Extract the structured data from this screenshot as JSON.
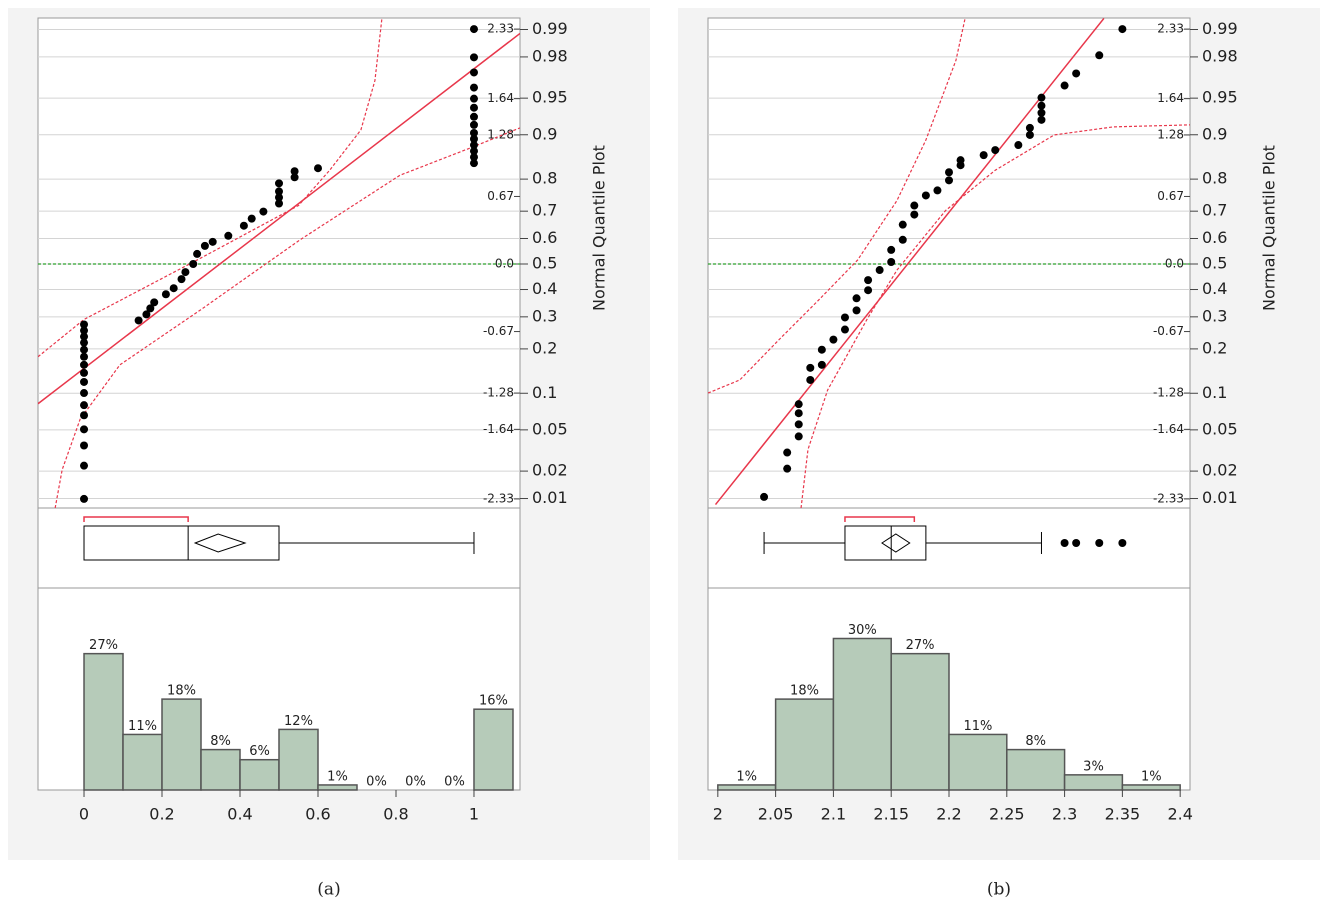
{
  "chart_data": [
    {
      "type": "distribution",
      "caption": "(a)",
      "xlim": [
        -0.118,
        1.118
      ],
      "xticks": [
        0,
        0.2,
        0.4,
        0.6,
        0.8,
        1
      ],
      "quantile": {
        "ylabel": "Normal Quantile Plot",
        "ylim": [
          -2.42,
          2.44
        ],
        "points": {
          "x": [
            0,
            0,
            0,
            0,
            0,
            0,
            0,
            0,
            0,
            0,
            0,
            0,
            0,
            0,
            0,
            0,
            0.14,
            0.16,
            0.17,
            0.18,
            0.21,
            0.23,
            0.25,
            0.26,
            0.28,
            0.29,
            0.31,
            0.33,
            0.37,
            0.41,
            0.43,
            0.46,
            0.5,
            0.5,
            0.5,
            0.5,
            0.54,
            0.54,
            0.6,
            1,
            1,
            1,
            1,
            1,
            1,
            1,
            1,
            1,
            1,
            1,
            1,
            1,
            1
          ],
          "y": [
            -2.33,
            -2.0,
            -1.8,
            -1.64,
            -1.5,
            -1.4,
            -1.28,
            -1.17,
            -1.08,
            -1.0,
            -0.92,
            -0.85,
            -0.78,
            -0.72,
            -0.66,
            -0.6,
            -0.56,
            -0.5,
            -0.44,
            -0.38,
            -0.3,
            -0.24,
            -0.15,
            -0.08,
            0.0,
            0.1,
            0.18,
            0.22,
            0.28,
            0.38,
            0.45,
            0.52,
            0.6,
            0.66,
            0.72,
            0.8,
            0.86,
            0.92,
            0.95,
            1.0,
            1.06,
            1.12,
            1.18,
            1.24,
            1.3,
            1.38,
            1.46,
            1.55,
            1.64,
            1.75,
            1.9,
            2.05,
            2.33
          ]
        },
        "fit_line": {
          "x": [
            -0.118,
            1.118
          ],
          "y": [
            -1.386,
            2.287
          ]
        },
        "band_upper": {
          "x": [
            -0.118,
            0,
            0.3,
            0.55,
            0.63,
            0.71,
            0.746,
            0.764
          ],
          "y": [
            -0.92,
            -0.55,
            0.06,
            0.58,
            0.93,
            1.33,
            1.82,
            2.44
          ]
        },
        "band_lower": {
          "x": [
            -0.074,
            -0.056,
            -0.01,
            0.092,
            0.297,
            0.554,
            0.81,
            0.99,
            1.118
          ],
          "y": [
            -2.42,
            -2.04,
            -1.54,
            -1.0,
            -0.46,
            0.24,
            0.88,
            1.15,
            1.35
          ]
        },
        "ref_line": 0,
        "yticks": [
          2.33,
          1.64,
          1.28,
          0.67,
          {
            "value": 0,
            "label": "0.0"
          },
          -0.67,
          -1.28,
          -1.64,
          -2.33
        ],
        "prob_ticks": [
          {
            "value": 2.326,
            "label": "0.99"
          },
          {
            "value": 2.054,
            "label": "0.98"
          },
          {
            "value": 1.645,
            "label": "0.95"
          },
          {
            "value": 1.282,
            "label": "0.9"
          },
          {
            "value": 0.842,
            "label": "0.8"
          },
          {
            "value": 0.524,
            "label": "0.7"
          },
          {
            "value": 0.253,
            "label": "0.6"
          },
          {
            "value": 0,
            "label": "0.5"
          },
          {
            "value": -0.253,
            "label": "0.4"
          },
          {
            "value": -0.524,
            "label": "0.3"
          },
          {
            "value": -0.842,
            "label": "0.2"
          },
          {
            "value": -1.282,
            "label": "0.1"
          },
          {
            "value": -1.645,
            "label": "0.05"
          },
          {
            "value": -2.054,
            "label": "0.02"
          },
          {
            "value": -2.326,
            "label": "0.01"
          }
        ]
      },
      "box": {
        "min": 0,
        "q1": 0,
        "median": 0.267,
        "q3": 0.5,
        "max": 1,
        "mean": 0.344,
        "mean_ci": [
          0.285,
          0.413
        ],
        "shortest_half": [
          0,
          0.267
        ],
        "outliers": []
      },
      "histogram": {
        "bins": [
          0,
          0.1,
          0.2,
          0.3,
          0.4,
          0.5,
          0.6,
          0.7,
          0.8,
          0.9,
          1.0,
          1.1
        ],
        "values": [
          27,
          11,
          18,
          8,
          6,
          12,
          1,
          0,
          0,
          0,
          16
        ],
        "value_labels": [
          "27%",
          "11%",
          "18%",
          "8%",
          "6%",
          "12%",
          "1%",
          "0%",
          "0%",
          "0%",
          "16%"
        ],
        "ylim": [
          0,
          40
        ],
        "color": "#b6cbb9"
      }
    },
    {
      "type": "distribution",
      "caption": "(b)",
      "xlim": [
        1.9915,
        2.4085
      ],
      "xticks": [
        2,
        2.05,
        2.1,
        2.15,
        2.2,
        2.25,
        2.3,
        2.35,
        2.4
      ],
      "quantile": {
        "ylabel": "Normal Quantile Plot",
        "ylim": [
          -2.42,
          2.44
        ],
        "points": {
          "x": [
            2.04,
            2.06,
            2.06,
            2.07,
            2.07,
            2.07,
            2.07,
            2.08,
            2.08,
            2.09,
            2.09,
            2.1,
            2.11,
            2.11,
            2.12,
            2.12,
            2.13,
            2.13,
            2.14,
            2.15,
            2.15,
            2.16,
            2.16,
            2.17,
            2.17,
            2.18,
            2.19,
            2.2,
            2.2,
            2.21,
            2.21,
            2.23,
            2.24,
            2.26,
            2.27,
            2.27,
            2.28,
            2.28,
            2.28,
            2.28,
            2.3,
            2.31,
            2.33,
            2.35
          ],
          "y": [
            -2.31,
            -2.03,
            -1.87,
            -1.71,
            -1.59,
            -1.48,
            -1.39,
            -1.15,
            -1.03,
            -1.0,
            -0.85,
            -0.75,
            -0.65,
            -0.53,
            -0.46,
            -0.34,
            -0.26,
            -0.16,
            -0.06,
            0.02,
            0.14,
            0.24,
            0.39,
            0.49,
            0.58,
            0.68,
            0.73,
            0.83,
            0.91,
            0.98,
            1.03,
            1.08,
            1.13,
            1.18,
            1.28,
            1.35,
            1.43,
            1.5,
            1.57,
            1.65,
            1.77,
            1.89,
            2.07,
            2.33
          ]
        },
        "fit_line": {
          "x": [
            1.998,
            2.334
          ],
          "y": [
            -2.386,
            2.436
          ]
        },
        "band_upper": {
          "x": [
            1.9915,
            2.019,
            2.053,
            2.087,
            2.121,
            2.155,
            2.18,
            2.206,
            2.214
          ],
          "y": [
            -1.28,
            -1.15,
            -0.75,
            -0.36,
            0.04,
            0.63,
            1.23,
            2.02,
            2.44
          ]
        },
        "band_lower": {
          "x": [
            2.072,
            2.078,
            2.095,
            2.129,
            2.155,
            2.197,
            2.24,
            2.291,
            2.342,
            2.4085
          ],
          "y": [
            -2.42,
            -1.84,
            -1.25,
            -0.55,
            -0.06,
            0.53,
            0.93,
            1.28,
            1.36,
            1.38
          ]
        },
        "ref_line": 0,
        "yticks": [
          2.33,
          1.64,
          1.28,
          0.67,
          {
            "value": 0,
            "label": "0.0"
          },
          -0.67,
          -1.28,
          -1.64,
          -2.33
        ],
        "prob_ticks": [
          {
            "value": 2.326,
            "label": "0.99"
          },
          {
            "value": 2.054,
            "label": "0.98"
          },
          {
            "value": 1.645,
            "label": "0.95"
          },
          {
            "value": 1.282,
            "label": "0.9"
          },
          {
            "value": 0.842,
            "label": "0.8"
          },
          {
            "value": 0.524,
            "label": "0.7"
          },
          {
            "value": 0.253,
            "label": "0.6"
          },
          {
            "value": 0,
            "label": "0.5"
          },
          {
            "value": -0.253,
            "label": "0.4"
          },
          {
            "value": -0.524,
            "label": "0.3"
          },
          {
            "value": -0.842,
            "label": "0.2"
          },
          {
            "value": -1.282,
            "label": "0.1"
          },
          {
            "value": -1.645,
            "label": "0.05"
          },
          {
            "value": -2.054,
            "label": "0.02"
          },
          {
            "value": -2.326,
            "label": "0.01"
          }
        ]
      },
      "box": {
        "min": 2.04,
        "q1": 2.11,
        "median": 2.15,
        "q3": 2.18,
        "max": 2.28,
        "mean": 2.154,
        "mean_ci": [
          2.142,
          2.166
        ],
        "shortest_half": [
          2.11,
          2.17
        ],
        "outliers": [
          2.3,
          2.31,
          2.33,
          2.35
        ]
      },
      "histogram": {
        "bins": [
          2.0,
          2.05,
          2.1,
          2.15,
          2.2,
          2.25,
          2.3,
          2.35,
          2.4
        ],
        "values": [
          1,
          18,
          30,
          27,
          11,
          8,
          3,
          1
        ],
        "value_labels": [
          "1%",
          "18%",
          "30%",
          "27%",
          "11%",
          "8%",
          "3%",
          "1%"
        ],
        "ylim": [
          0,
          40
        ],
        "color": "#b6cbb9"
      }
    }
  ]
}
